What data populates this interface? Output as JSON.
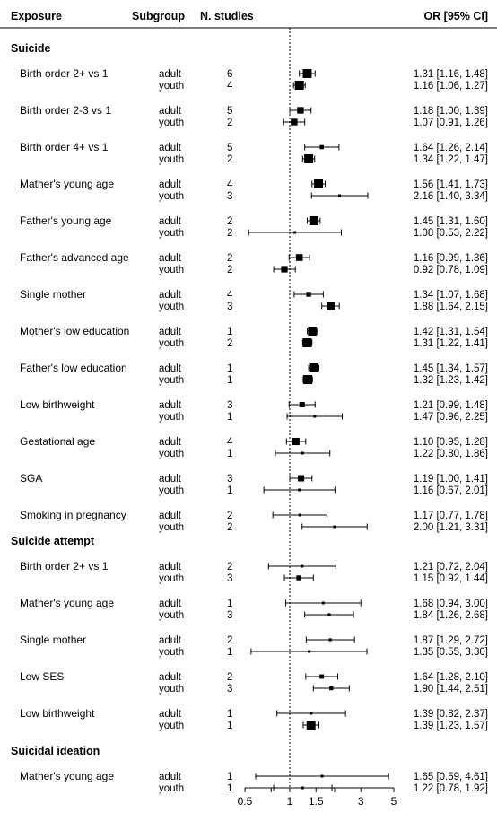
{
  "header": {
    "exposure": "Exposure",
    "subgroup": "Subgroup",
    "n_studies": "N. studies",
    "or": "OR [95% CI]"
  },
  "chart_data": {
    "type": "forest",
    "xscale": "log",
    "reference_line": 1,
    "xticks": [
      "0.5",
      "1",
      "1.5",
      "3",
      "5"
    ],
    "xlim": [
      0.5,
      5
    ],
    "sections": [
      {
        "name": "Suicide",
        "exposures": [
          {
            "label": "Birth order 2+ vs 1",
            "rows": [
              {
                "subgroup": "adult",
                "n": 6,
                "or": 1.31,
                "lo": 1.16,
                "hi": 1.48,
                "text": "1.31 [1.16, 1.48]"
              },
              {
                "subgroup": "youth",
                "n": 4,
                "or": 1.16,
                "lo": 1.06,
                "hi": 1.27,
                "text": "1.16 [1.06, 1.27]"
              }
            ]
          },
          {
            "label": "Birth order 2-3 vs 1",
            "rows": [
              {
                "subgroup": "adult",
                "n": 5,
                "or": 1.18,
                "lo": 1.0,
                "hi": 1.39,
                "text": "1.18 [1.00, 1.39]"
              },
              {
                "subgroup": "youth",
                "n": 2,
                "or": 1.07,
                "lo": 0.91,
                "hi": 1.26,
                "text": "1.07 [0.91, 1.26]"
              }
            ]
          },
          {
            "label": "Birth order 4+ vs 1",
            "rows": [
              {
                "subgroup": "adult",
                "n": 5,
                "or": 1.64,
                "lo": 1.26,
                "hi": 2.14,
                "text": "1.64 [1.26, 2.14]"
              },
              {
                "subgroup": "youth",
                "n": 2,
                "or": 1.34,
                "lo": 1.22,
                "hi": 1.47,
                "text": "1.34 [1.22, 1.47]"
              }
            ]
          },
          {
            "label": "Mather's young age",
            "rows": [
              {
                "subgroup": "adult",
                "n": 4,
                "or": 1.56,
                "lo": 1.41,
                "hi": 1.73,
                "text": "1.56 [1.41, 1.73]"
              },
              {
                "subgroup": "youth",
                "n": 3,
                "or": 2.16,
                "lo": 1.4,
                "hi": 3.34,
                "text": "2.16 [1.40, 3.34]"
              }
            ]
          },
          {
            "label": "Father's young age",
            "rows": [
              {
                "subgroup": "adult",
                "n": 2,
                "or": 1.45,
                "lo": 1.31,
                "hi": 1.6,
                "text": "1.45 [1.31, 1.60]"
              },
              {
                "subgroup": "youth",
                "n": 2,
                "or": 1.08,
                "lo": 0.53,
                "hi": 2.22,
                "text": "1.08 [0.53, 2.22]"
              }
            ]
          },
          {
            "label": "Father's advanced age",
            "rows": [
              {
                "subgroup": "adult",
                "n": 2,
                "or": 1.16,
                "lo": 0.99,
                "hi": 1.36,
                "text": "1.16 [0.99, 1.36]"
              },
              {
                "subgroup": "youth",
                "n": 2,
                "or": 0.92,
                "lo": 0.78,
                "hi": 1.09,
                "text": "0.92 [0.78, 1.09]"
              }
            ]
          },
          {
            "label": "Single mother",
            "rows": [
              {
                "subgroup": "adult",
                "n": 4,
                "or": 1.34,
                "lo": 1.07,
                "hi": 1.68,
                "text": "1.34 [1.07, 1.68]"
              },
              {
                "subgroup": "youth",
                "n": 3,
                "or": 1.88,
                "lo": 1.64,
                "hi": 2.15,
                "text": "1.88 [1.64, 2.15]"
              }
            ]
          },
          {
            "label": "Mother's low education",
            "rows": [
              {
                "subgroup": "adult",
                "n": 1,
                "or": 1.42,
                "lo": 1.31,
                "hi": 1.54,
                "text": "1.42 [1.31, 1.54]"
              },
              {
                "subgroup": "youth",
                "n": 2,
                "or": 1.31,
                "lo": 1.22,
                "hi": 1.41,
                "text": "1.31 [1.22, 1.41]"
              }
            ]
          },
          {
            "label": "Father's low education",
            "rows": [
              {
                "subgroup": "adult",
                "n": 1,
                "or": 1.45,
                "lo": 1.34,
                "hi": 1.57,
                "text": "1.45 [1.34, 1.57]"
              },
              {
                "subgroup": "youth",
                "n": 1,
                "or": 1.32,
                "lo": 1.23,
                "hi": 1.42,
                "text": "1.32 [1.23, 1.42]"
              }
            ]
          },
          {
            "label": "Low birthweight",
            "rows": [
              {
                "subgroup": "adult",
                "n": 3,
                "or": 1.21,
                "lo": 0.99,
                "hi": 1.48,
                "text": "1.21 [0.99, 1.48]"
              },
              {
                "subgroup": "youth",
                "n": 1,
                "or": 1.47,
                "lo": 0.96,
                "hi": 2.25,
                "text": "1.47 [0.96, 2.25]"
              }
            ]
          },
          {
            "label": "Gestational age",
            "rows": [
              {
                "subgroup": "adult",
                "n": 4,
                "or": 1.1,
                "lo": 0.95,
                "hi": 1.28,
                "text": "1.10 [0.95, 1.28]"
              },
              {
                "subgroup": "youth",
                "n": 1,
                "or": 1.22,
                "lo": 0.8,
                "hi": 1.86,
                "text": "1.22 [0.80, 1.86]"
              }
            ]
          },
          {
            "label": "SGA",
            "rows": [
              {
                "subgroup": "adult",
                "n": 3,
                "or": 1.19,
                "lo": 1.0,
                "hi": 1.41,
                "text": "1.19 [1.00, 1.41]"
              },
              {
                "subgroup": "youth",
                "n": 1,
                "or": 1.16,
                "lo": 0.67,
                "hi": 2.01,
                "text": "1.16 [0.67, 2.01]"
              }
            ]
          },
          {
            "label": "Smoking in pregnancy",
            "rows": [
              {
                "subgroup": "adult",
                "n": 2,
                "or": 1.17,
                "lo": 0.77,
                "hi": 1.78,
                "text": "1.17 [0.77, 1.78]"
              },
              {
                "subgroup": "youth",
                "n": 2,
                "or": 2.0,
                "lo": 1.21,
                "hi": 3.31,
                "text": "2.00 [1.21, 3.31]"
              }
            ]
          }
        ]
      },
      {
        "name": "Suicide attempt",
        "exposures": [
          {
            "label": "Birth order 2+ vs 1",
            "rows": [
              {
                "subgroup": "adult",
                "n": 2,
                "or": 1.21,
                "lo": 0.72,
                "hi": 2.04,
                "text": "1.21 [0.72, 2.04]"
              },
              {
                "subgroup": "youth",
                "n": 3,
                "or": 1.15,
                "lo": 0.92,
                "hi": 1.44,
                "text": "1.15 [0.92, 1.44]"
              }
            ]
          },
          {
            "label": "Mather's young age",
            "rows": [
              {
                "subgroup": "adult",
                "n": 1,
                "or": 1.68,
                "lo": 0.94,
                "hi": 3.0,
                "text": "1.68 [0.94, 3.00]"
              },
              {
                "subgroup": "youth",
                "n": 3,
                "or": 1.84,
                "lo": 1.26,
                "hi": 2.68,
                "text": "1.84 [1.26, 2.68]"
              }
            ]
          },
          {
            "label": "Single mother",
            "rows": [
              {
                "subgroup": "adult",
                "n": 2,
                "or": 1.87,
                "lo": 1.29,
                "hi": 2.72,
                "text": "1.87 [1.29, 2.72]"
              },
              {
                "subgroup": "youth",
                "n": 1,
                "or": 1.35,
                "lo": 0.55,
                "hi": 3.3,
                "text": "1.35 [0.55, 3.30]"
              }
            ]
          },
          {
            "label": "Low SES",
            "rows": [
              {
                "subgroup": "adult",
                "n": 2,
                "or": 1.64,
                "lo": 1.28,
                "hi": 2.1,
                "text": "1.64 [1.28, 2.10]"
              },
              {
                "subgroup": "youth",
                "n": 3,
                "or": 1.9,
                "lo": 1.44,
                "hi": 2.51,
                "text": "1.90 [1.44, 2.51]"
              }
            ]
          },
          {
            "label": "Low birthweight",
            "rows": [
              {
                "subgroup": "adult",
                "n": 1,
                "or": 1.39,
                "lo": 0.82,
                "hi": 2.37,
                "text": "1.39 [0.82, 2.37]"
              },
              {
                "subgroup": "youth",
                "n": 1,
                "or": 1.39,
                "lo": 1.23,
                "hi": 1.57,
                "text": "1.39 [1.23, 1.57]"
              }
            ]
          }
        ]
      },
      {
        "name": "Suicidal ideation",
        "exposures": [
          {
            "label": "Mather's young age",
            "rows": [
              {
                "subgroup": "adult",
                "n": 1,
                "or": 1.65,
                "lo": 0.59,
                "hi": 4.61,
                "text": "1.65 [0.59, 4.61]"
              },
              {
                "subgroup": "youth",
                "n": 1,
                "or": 1.22,
                "lo": 0.78,
                "hi": 1.92,
                "text": "1.22 [0.78, 1.92]"
              }
            ]
          }
        ]
      }
    ]
  }
}
